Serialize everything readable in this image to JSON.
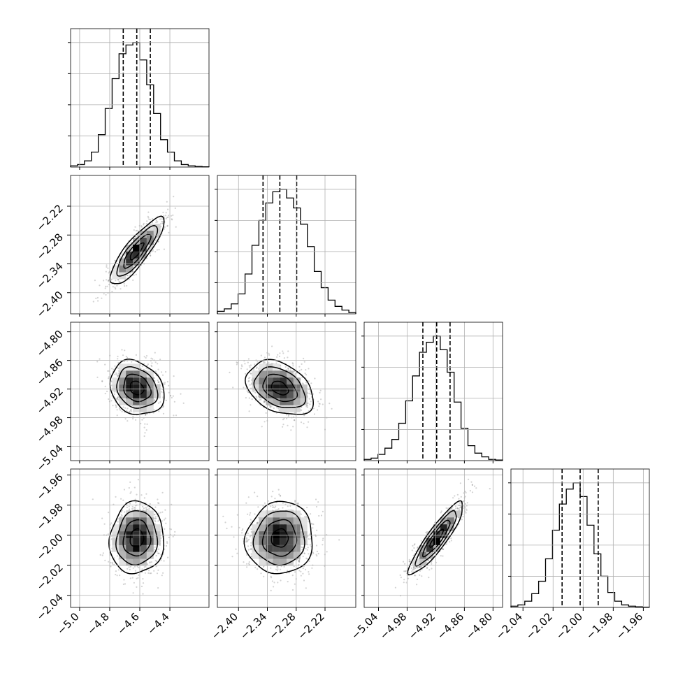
{
  "chart_data": {
    "type": "corner",
    "grid": true,
    "colors": {
      "line": "#000000",
      "grid": "#b0b0b0",
      "points": "#808080"
    },
    "params": [
      {
        "range": [
          -5.06,
          -4.14
        ],
        "ticks": [
          -5.0,
          -4.8,
          -4.6,
          -4.4
        ],
        "tick_labels": [
          "−5.0",
          "−4.8",
          "−4.6",
          "−4.4"
        ],
        "quantiles": [
          -4.71,
          -4.62,
          -4.53
        ],
        "median": -4.62,
        "hist": [
          0.01,
          0.02,
          0.05,
          0.12,
          0.26,
          0.47,
          0.71,
          0.91,
          0.98,
          1.0,
          0.86,
          0.66,
          0.43,
          0.22,
          0.12,
          0.05,
          0.02,
          0.01,
          0.005,
          0.002
        ]
      },
      {
        "range": [
          -2.444,
          -2.156
        ],
        "ticks": [
          -2.4,
          -2.34,
          -2.28,
          -2.22
        ],
        "tick_labels": [
          "−2.40",
          "−2.34",
          "−2.28",
          "−2.22"
        ],
        "quantiles": [
          -2.349,
          -2.314,
          -2.279
        ],
        "median": -2.314,
        "hist": [
          0.02,
          0.04,
          0.08,
          0.16,
          0.32,
          0.55,
          0.75,
          0.89,
          0.98,
          1.0,
          0.93,
          0.85,
          0.72,
          0.54,
          0.34,
          0.21,
          0.11,
          0.06,
          0.03,
          0.01
        ]
      },
      {
        "range": [
          -5.07,
          -4.78
        ],
        "ticks": [
          -5.04,
          -4.98,
          -4.92,
          -4.86,
          -4.8
        ],
        "tick_labels": [
          "−5.04",
          "−4.98",
          "−4.92",
          "−4.86",
          "−4.80"
        ],
        "quantiles": [
          -4.947,
          -4.918,
          -4.89
        ],
        "median": -4.918,
        "hist": [
          0.01,
          0.02,
          0.05,
          0.1,
          0.17,
          0.3,
          0.48,
          0.68,
          0.87,
          0.95,
          1.0,
          0.89,
          0.71,
          0.47,
          0.26,
          0.12,
          0.06,
          0.03,
          0.01,
          0.005
        ]
      },
      {
        "range": [
          -2.048,
          -1.956
        ],
        "ticks": [
          -2.04,
          -2.02,
          -2.0,
          -1.98,
          -1.96
        ],
        "tick_labels": [
          "−2.04",
          "−2.02",
          "−2.00",
          "−1.98",
          "−1.96"
        ],
        "quantiles": [
          -2.014,
          -2.002,
          -1.99
        ],
        "median": -2.002,
        "hist": [
          0.01,
          0.02,
          0.05,
          0.11,
          0.21,
          0.39,
          0.62,
          0.83,
          0.95,
          1.0,
          0.89,
          0.66,
          0.43,
          0.25,
          0.12,
          0.05,
          0.02,
          0.01,
          0.005,
          0.002
        ]
      }
    ],
    "correlations": {
      "1-0": 0.85,
      "2-0": -0.2,
      "2-1": -0.35,
      "3-0": 0.05,
      "3-1": 0.05,
      "3-2": 0.9
    }
  }
}
